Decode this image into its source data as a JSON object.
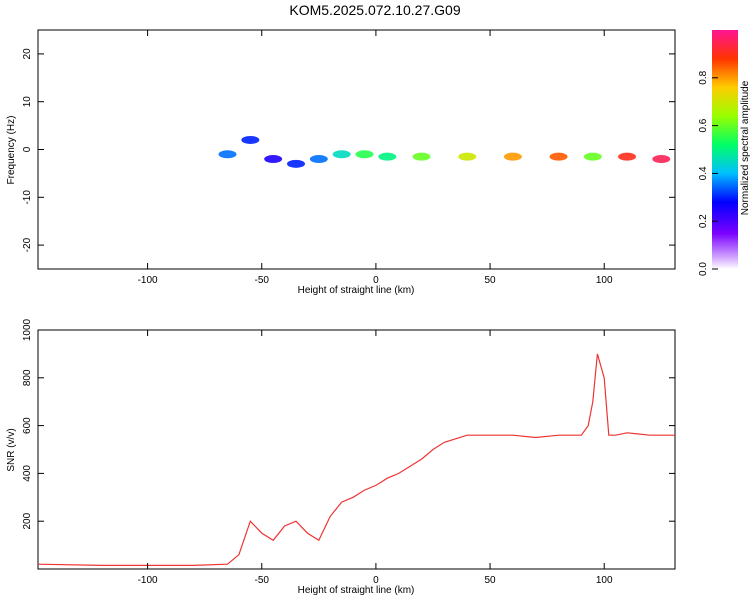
{
  "title": "KOM5.2025.072.10.27.G09",
  "chart_data": [
    {
      "type": "heatmap",
      "xlabel": "Height of straight line (km)",
      "ylabel": "Frequency (Hz)",
      "xlim": [
        -148,
        131
      ],
      "ylim": [
        -25,
        25
      ],
      "xticks": [
        -100,
        -50,
        0,
        50,
        100
      ],
      "yticks": [
        -20,
        -10,
        0,
        10,
        20
      ],
      "colorbar": {
        "label": "Normalized spectral amplitude",
        "ticks": [
          "0.0",
          "0.2",
          "0.4",
          "0.6",
          "0.8"
        ],
        "range": [
          0,
          1
        ]
      },
      "ridge": [
        {
          "x": -65,
          "y": -1,
          "amp": 0.35
        },
        {
          "x": -55,
          "y": 2,
          "amp": 0.3
        },
        {
          "x": -45,
          "y": -2,
          "amp": 0.25
        },
        {
          "x": -35,
          "y": -3,
          "amp": 0.3
        },
        {
          "x": -25,
          "y": -2,
          "amp": 0.35
        },
        {
          "x": -15,
          "y": -1,
          "amp": 0.45
        },
        {
          "x": -5,
          "y": -1,
          "amp": 0.55
        },
        {
          "x": 5,
          "y": -1.5,
          "amp": 0.5
        },
        {
          "x": 20,
          "y": -1.5,
          "amp": 0.6
        },
        {
          "x": 40,
          "y": -1.5,
          "amp": 0.7
        },
        {
          "x": 60,
          "y": -1.5,
          "amp": 0.8
        },
        {
          "x": 80,
          "y": -1.5,
          "amp": 0.85
        },
        {
          "x": 95,
          "y": -1.5,
          "amp": 0.6
        },
        {
          "x": 110,
          "y": -1.5,
          "amp": 0.9
        },
        {
          "x": 125,
          "y": -2,
          "amp": 0.95
        }
      ]
    },
    {
      "type": "line",
      "xlabel": "Height of straight line (km)",
      "ylabel": "SNR (v/v)",
      "xlim": [
        -148,
        131
      ],
      "ylim": [
        0,
        1000
      ],
      "xticks": [
        -100,
        -50,
        0,
        50,
        100
      ],
      "yticks": [
        200,
        400,
        600,
        800,
        1000
      ],
      "color": "#ee3333",
      "series": [
        {
          "x": [
            -148,
            -120,
            -100,
            -80,
            -65,
            -60,
            -55,
            -50,
            -45,
            -40,
            -35,
            -30,
            -25,
            -20,
            -15,
            -10,
            -5,
            0,
            5,
            10,
            15,
            20,
            25,
            30,
            40,
            50,
            60,
            70,
            80,
            85,
            90,
            93,
            95,
            97,
            100,
            102,
            105,
            110,
            120,
            131
          ],
          "y": [
            20,
            15,
            15,
            15,
            20,
            60,
            200,
            150,
            120,
            180,
            200,
            150,
            120,
            220,
            280,
            300,
            330,
            350,
            380,
            400,
            430,
            460,
            500,
            530,
            560,
            560,
            560,
            550,
            560,
            560,
            560,
            600,
            700,
            900,
            800,
            560,
            560,
            570,
            560,
            560
          ]
        }
      ]
    }
  ]
}
